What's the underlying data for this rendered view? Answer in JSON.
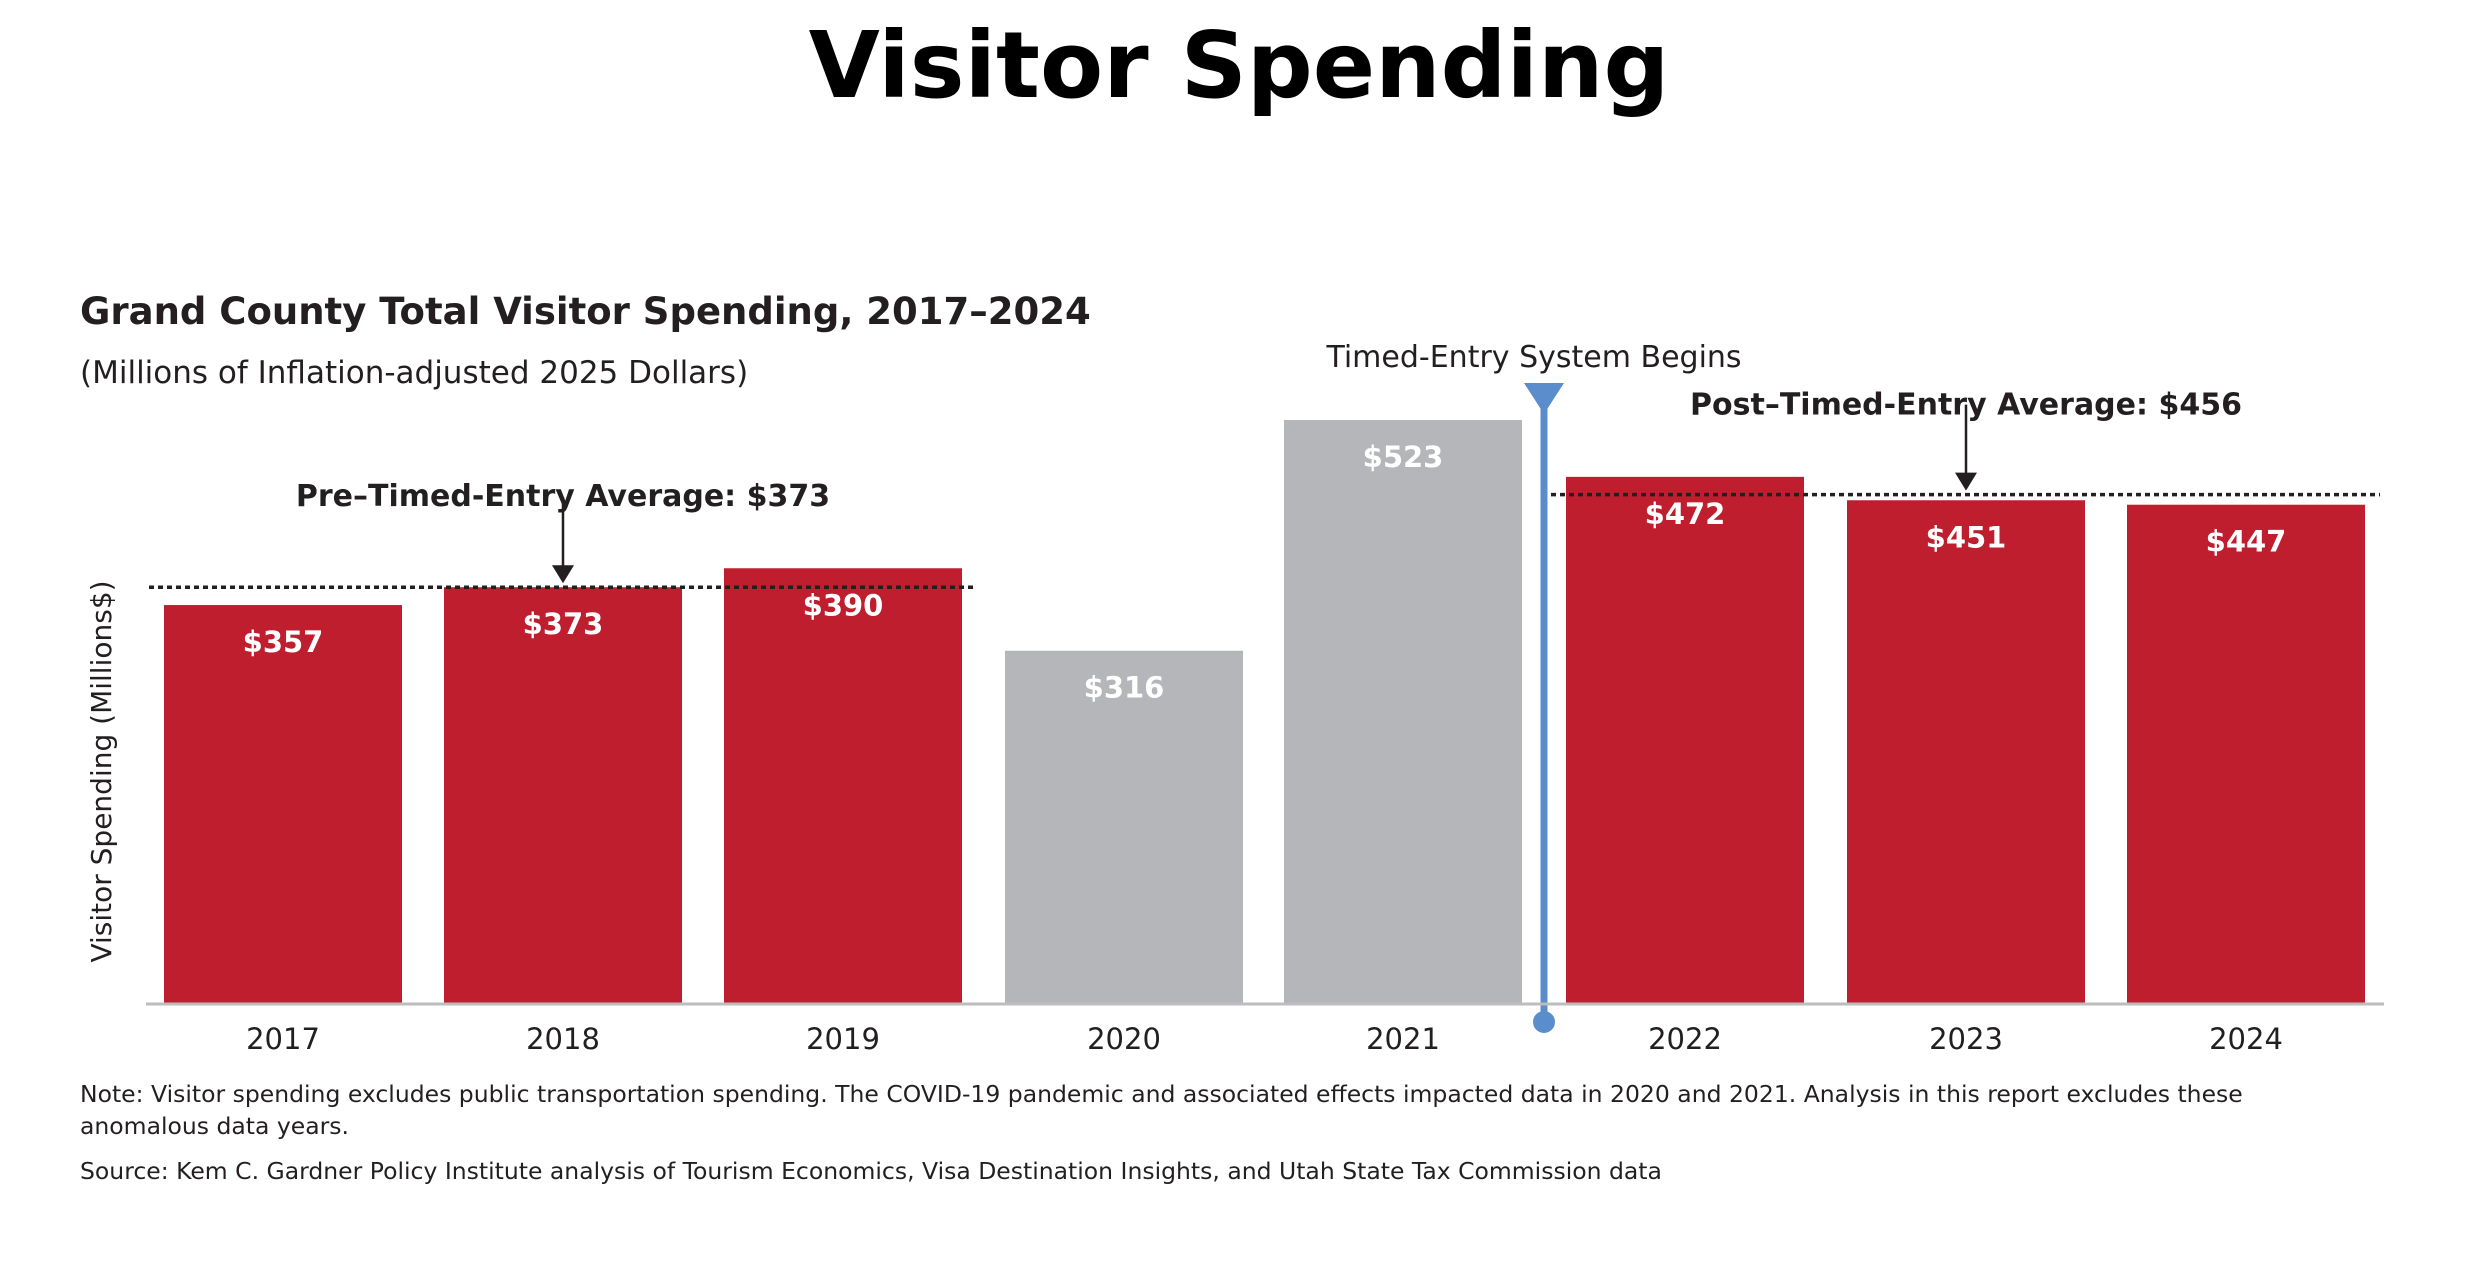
{
  "slide": {
    "title": "Visitor Spending"
  },
  "chart_data": {
    "type": "bar",
    "title": "Grand County Total Visitor Spending, 2017–2024",
    "subtitle": "(Millions of Inflation-adjusted 2025 Dollars)",
    "xlabel": "",
    "ylabel": "Visitor Spending (Millions$)",
    "categories": [
      "2017",
      "2018",
      "2019",
      "2020",
      "2021",
      "2022",
      "2023",
      "2024"
    ],
    "values": [
      357,
      373,
      390,
      316,
      523,
      472,
      451,
      447
    ],
    "value_labels": [
      "$357",
      "$373",
      "$390",
      "$316",
      "$523",
      "$472",
      "$451",
      "$447"
    ],
    "bar_colors": [
      "#be1e2d",
      "#be1e2d",
      "#be1e2d",
      "#b5b6b9",
      "#b5b6b9",
      "#be1e2d",
      "#be1e2d",
      "#be1e2d"
    ],
    "ylim": [
      0,
      523
    ],
    "grid": false,
    "legend": "none",
    "annotations": {
      "timed_entry": {
        "label": "Timed-Entry System Begins",
        "between": [
          "2021",
          "2022"
        ],
        "color": "#5b8ccb"
      },
      "pre_average": {
        "label": "Pre–Timed-Entry Average: $373",
        "value": 373,
        "span": [
          "2017",
          "2019"
        ],
        "arrow_at": "2018"
      },
      "post_average": {
        "label": "Post–Timed-Entry Average: $456",
        "value": 456,
        "span": [
          "2022",
          "2024"
        ],
        "arrow_at": "2023"
      }
    },
    "note_line_1": "Note: Visitor spending excludes public transportation spending. The COVID-19 pandemic and associated effects impacted data in 2020 and 2021. Analysis in this report excludes these",
    "note_line_2": "anomalous data years.",
    "source": "Source: Kem C. Gardner Policy Institute analysis of Tourism Economics, Visa Destination Insights, and Utah State Tax Commission data"
  }
}
